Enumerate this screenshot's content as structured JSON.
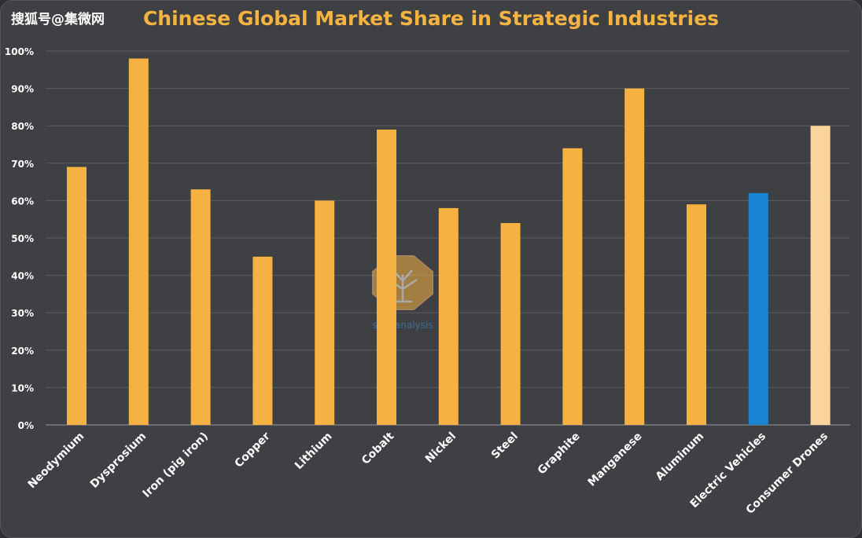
{
  "watermark": {
    "text": "搜狐号@集微网"
  },
  "logo": {
    "text": "semianalysis"
  },
  "colors": {
    "default_bar": "#f5b142",
    "highlight_ev": "#1a85d2",
    "highlight_drones": "#fbd49b"
  },
  "chart_data": {
    "type": "bar",
    "title": "Chinese Global Market Share in Strategic Industries",
    "xlabel": "",
    "ylabel": "",
    "ylim": [
      0,
      100
    ],
    "ytick_labels": [
      "0%",
      "10%",
      "20%",
      "30%",
      "40%",
      "50%",
      "60%",
      "70%",
      "80%",
      "90%",
      "100%"
    ],
    "grid": true,
    "categories": [
      "Neodymium",
      "Dysprosium",
      "Iron (pig iron)",
      "Copper",
      "Lithium",
      "Cobalt",
      "Nickel",
      "Steel",
      "Graphite",
      "Manganese",
      "Aluminum",
      "Electric Vehicles",
      "Consumer Drones"
    ],
    "values": [
      69,
      98,
      63,
      45,
      60,
      79,
      58,
      54,
      74,
      90,
      59,
      62,
      80
    ],
    "bar_colors": [
      "#f5b142",
      "#f5b142",
      "#f5b142",
      "#f5b142",
      "#f5b142",
      "#f5b142",
      "#f5b142",
      "#f5b142",
      "#f5b142",
      "#f5b142",
      "#f5b142",
      "#1a85d2",
      "#fbd49b"
    ]
  }
}
